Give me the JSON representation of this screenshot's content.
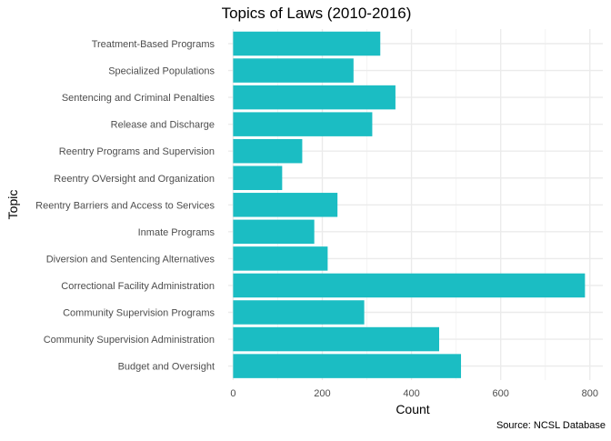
{
  "chart_data": {
    "type": "bar",
    "orientation": "horizontal",
    "title": "Topics of Laws (2010-2016)",
    "xlabel": "Count",
    "ylabel": "Topic",
    "caption": "Source: NCSL Database",
    "categories": [
      "Treatment-Based Programs",
      "Specialized Populations",
      "Sentencing and Criminal Penalties",
      "Release and Discharge",
      "Reentry Programs and Supervision",
      "Reentry OVersight and Organization",
      "Reentry Barriers and Access to Services",
      "Inmate Programs",
      "Diversion and Sentencing Alternatives",
      "Correctional Facility Administration",
      "Community Supervision Programs",
      "Community Supervision Administration",
      "Budget and Oversight"
    ],
    "values": [
      330,
      270,
      364,
      312,
      155,
      110,
      234,
      182,
      212,
      789,
      294,
      462,
      511
    ],
    "xticks": [
      0,
      200,
      400,
      600,
      800
    ],
    "xlim": [
      -11,
      829
    ],
    "bar_color": "#1BBDC3",
    "grid_major_color": "#EBEBEB",
    "grid_minor_color": "#F4F4F4",
    "grid": true,
    "legend": "none"
  }
}
